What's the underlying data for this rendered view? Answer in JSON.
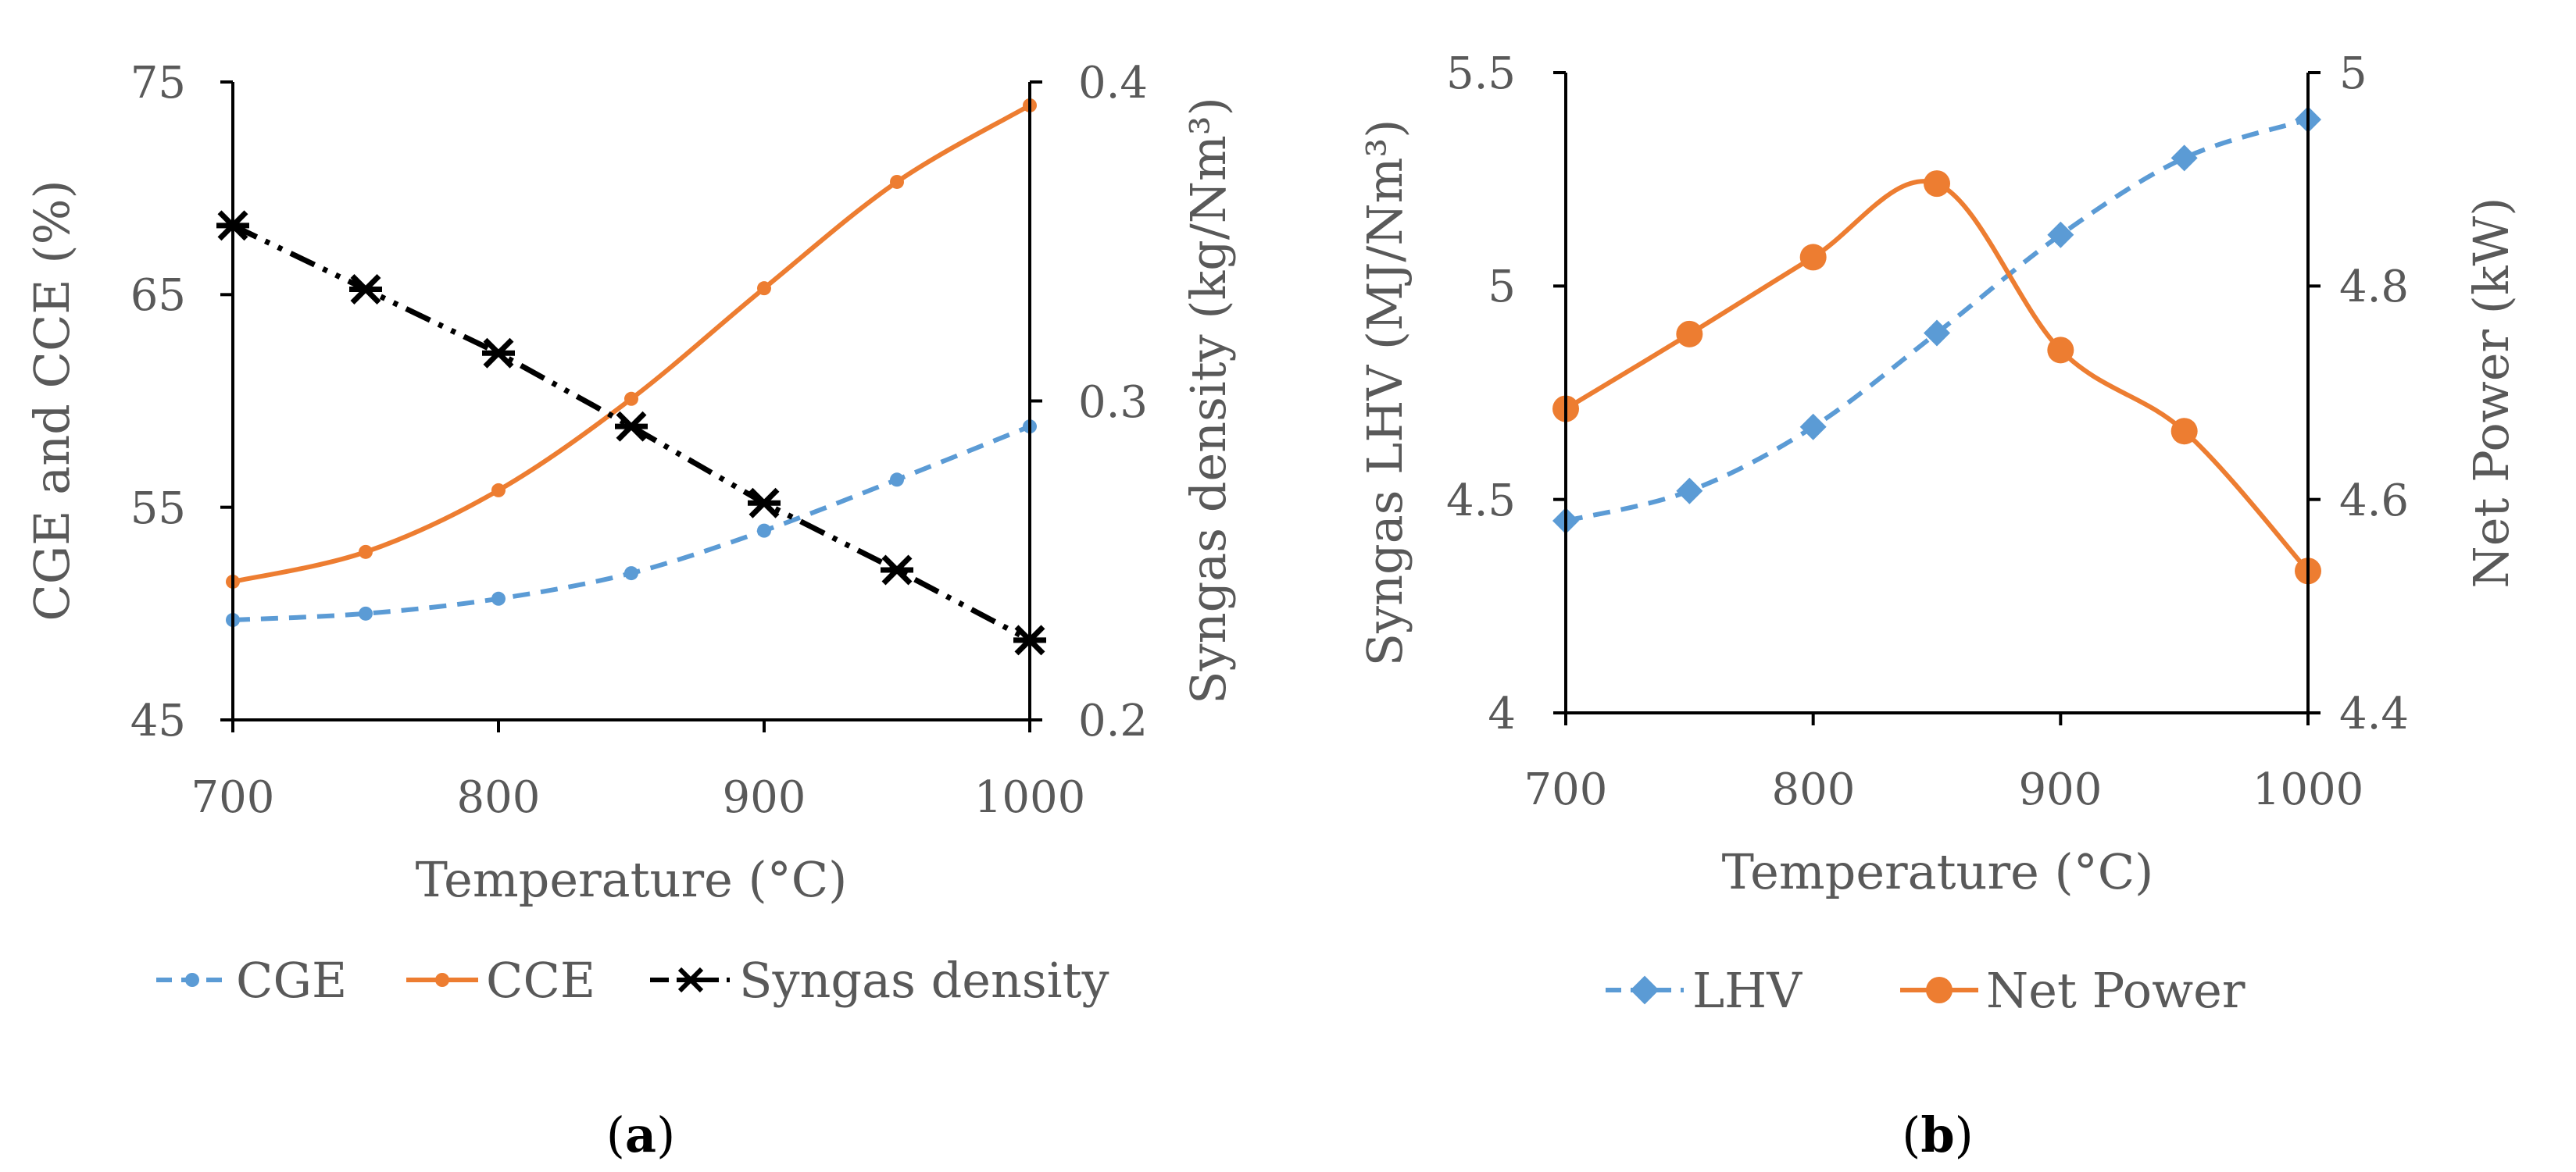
{
  "chart_data": [
    {
      "id": "a",
      "type": "line",
      "caption_label": "a",
      "xlabel": "Temperature (°C)",
      "ylabel_left": "CGE and CCE (%)",
      "ylabel_right": "Syngas density (kg/Nm³)",
      "x_ticks": [
        "700",
        "800",
        "900",
        "1000"
      ],
      "y_left_ticks": [
        "75",
        "65",
        "55",
        "45"
      ],
      "y_right_ticks": [
        "0.4",
        "0.3",
        "0.2"
      ],
      "xlim": [
        700,
        1000
      ],
      "y_left_lim": [
        45,
        75
      ],
      "y_right_lim": [
        0.2,
        0.4
      ],
      "x": [
        700,
        750,
        800,
        850,
        900,
        950,
        1000
      ],
      "series": [
        {
          "name": "CGE",
          "axis": "left",
          "color": "#5b9bd5",
          "line_style": "dashed",
          "marker": "circle",
          "smooth": true,
          "values": [
            49.7,
            50.0,
            50.7,
            51.9,
            53.9,
            56.3,
            58.8
          ]
        },
        {
          "name": "CCE",
          "axis": "left",
          "color": "#ed7d31",
          "line_style": "solid",
          "marker": "circle",
          "smooth": true,
          "values": [
            51.5,
            52.9,
            55.8,
            60.1,
            65.3,
            70.3,
            73.9
          ]
        },
        {
          "name": "Syngas density",
          "axis": "right",
          "color": "#000000",
          "line_style": "dash-dot-dot",
          "marker": "asterisk",
          "smooth": false,
          "values": [
            0.355,
            0.335,
            0.315,
            0.292,
            0.268,
            0.247,
            0.225
          ]
        }
      ],
      "legend": [
        "CGE",
        "CCE",
        "Syngas density"
      ],
      "legend_position": "bottom"
    },
    {
      "id": "b",
      "type": "line",
      "caption_label": "b",
      "xlabel": "Temperature (°C)",
      "ylabel_left": "Syngas LHV (MJ/Nm³)",
      "ylabel_right": "Net Power (kW)",
      "x_ticks": [
        "700",
        "800",
        "900",
        "1000"
      ],
      "y_left_ticks": [
        "5.5",
        "5",
        "4.5",
        "4"
      ],
      "y_right_ticks": [
        "5",
        "4.8",
        "4.6",
        "4.4"
      ],
      "xlim": [
        700,
        1000
      ],
      "y_left_lim": [
        4,
        5.5
      ],
      "y_right_lim": [
        4.4,
        5.0
      ],
      "x": [
        700,
        750,
        800,
        850,
        900,
        950,
        1000
      ],
      "series": [
        {
          "name": "LHV",
          "axis": "left",
          "color": "#5b9bd5",
          "line_style": "dashed",
          "marker": "diamond",
          "smooth": true,
          "values": [
            4.45,
            4.52,
            4.67,
            4.89,
            5.12,
            5.3,
            5.39
          ]
        },
        {
          "name": "Net Power",
          "axis": "right",
          "color": "#ed7d31",
          "line_style": "solid",
          "marker": "circle",
          "smooth": true,
          "values": [
            4.685,
            4.755,
            4.827,
            4.896,
            4.74,
            4.664,
            4.533
          ]
        }
      ],
      "legend": [
        "LHV",
        "Net Power"
      ],
      "legend_position": "bottom"
    }
  ]
}
